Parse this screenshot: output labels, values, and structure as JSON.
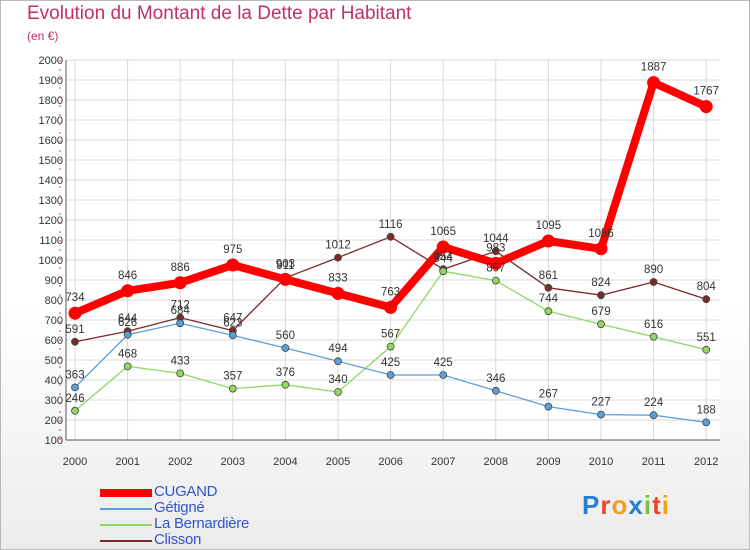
{
  "header": {
    "title": "Evolution du Montant de la Dette par Habitant",
    "subtitle": "(en €)"
  },
  "logo": {
    "text": "Proxiti",
    "letters": [
      "P",
      "r",
      "o",
      "x",
      "i",
      "t",
      "i"
    ],
    "colors": [
      "#2a7fd4",
      "#e8462a",
      "#f0a020",
      "#2a7fd4",
      "#7ac143",
      "#e8462a",
      "#f0a020"
    ]
  },
  "chart_data": {
    "type": "line",
    "title": "Evolution du Montant de la Dette par Habitant",
    "subtitle": "(en €)",
    "x": [
      "2000",
      "2001",
      "2002",
      "2003",
      "2004",
      "2005",
      "2006",
      "2007",
      "2008",
      "2009",
      "2010",
      "2011",
      "2012"
    ],
    "ylim": [
      100,
      2000
    ],
    "yticks": [
      100,
      200,
      300,
      400,
      500,
      600,
      700,
      800,
      900,
      1000,
      1100,
      1200,
      1300,
      1400,
      1500,
      1600,
      1700,
      1800,
      1900,
      2000
    ],
    "grid": true,
    "legend_position": "bottom-left",
    "series": [
      {
        "name": "Clisson",
        "color": "#7a2a2a",
        "width": 1.3,
        "values": [
          591,
          644,
          712,
          647,
          911,
          1012,
          1116,
          954,
          1044,
          861,
          824,
          890,
          804
        ],
        "labels": [
          "591",
          "644",
          "712",
          "647",
          "911",
          "1012",
          "1116",
          "954",
          "1044",
          "861",
          "824",
          "890",
          "804"
        ]
      },
      {
        "name": "La Bernardière",
        "color": "#90d860",
        "width": 1.3,
        "values": [
          246,
          468,
          433,
          357,
          376,
          340,
          567,
          944,
          897,
          744,
          679,
          616,
          551
        ],
        "labels": [
          "246",
          "468",
          "433",
          "357",
          "376",
          "340",
          "567",
          "944",
          "897",
          "744",
          "679",
          "616",
          "551"
        ]
      },
      {
        "name": "Gétigné",
        "color": "#5a9fd8",
        "width": 1.3,
        "values": [
          363,
          626,
          684,
          623,
          560,
          494,
          425,
          425,
          346,
          267,
          227,
          224,
          188
        ],
        "labels": [
          "363",
          "626",
          "684",
          "623",
          "560",
          "494",
          "425",
          "425",
          "346",
          "267",
          "227",
          "224",
          "188"
        ]
      },
      {
        "name": "CUGAND",
        "color": "#ff0000",
        "width": 8,
        "values": [
          734,
          846,
          886,
          975,
          903,
          833,
          763,
          1065,
          983,
          1095,
          1056,
          1887,
          1767
        ],
        "labels": [
          "734",
          "846",
          "886",
          "975",
          "903",
          "833",
          "763",
          "1065",
          "983",
          "1095",
          "1056",
          "1887",
          "1767"
        ]
      }
    ],
    "legend_order": [
      "CUGAND",
      "Gétigné",
      "La Bernardière",
      "Clisson"
    ]
  }
}
